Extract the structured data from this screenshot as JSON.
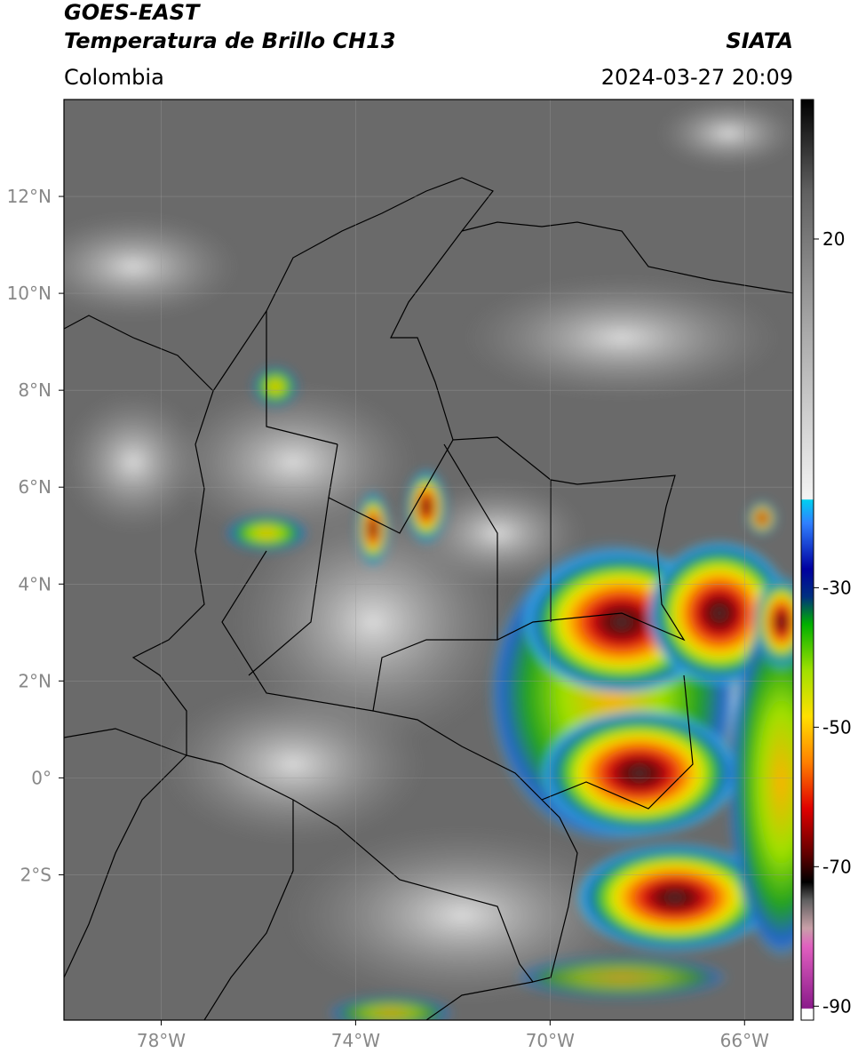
{
  "map": {
    "title": "GOES-EAST",
    "subtitle": "Temperatura de Brillo CH13",
    "source": "SIATA",
    "region": "Colombia",
    "timestamp": "2024-03-27 20:09",
    "xlim": [
      -80,
      -65
    ],
    "ylim": [
      -5,
      14
    ],
    "xticks": [
      {
        "value": -78,
        "label": "78°W"
      },
      {
        "value": -74,
        "label": "74°W"
      },
      {
        "value": -70,
        "label": "70°W"
      },
      {
        "value": -66,
        "label": "66°W"
      }
    ],
    "yticks": [
      {
        "value": 12,
        "label": "12°N"
      },
      {
        "value": 10,
        "label": "10°N"
      },
      {
        "value": 8,
        "label": "8°N"
      },
      {
        "value": 6,
        "label": "6°N"
      },
      {
        "value": 4,
        "label": "4°N"
      },
      {
        "value": 2,
        "label": "2°N"
      },
      {
        "value": 0,
        "label": "0°"
      },
      {
        "value": -2,
        "label": "2°S"
      }
    ],
    "grid": true,
    "colorbar": {
      "clim": [
        -92,
        40
      ],
      "ticks": [
        20,
        -30,
        -50,
        -70,
        -90
      ]
    }
  }
}
